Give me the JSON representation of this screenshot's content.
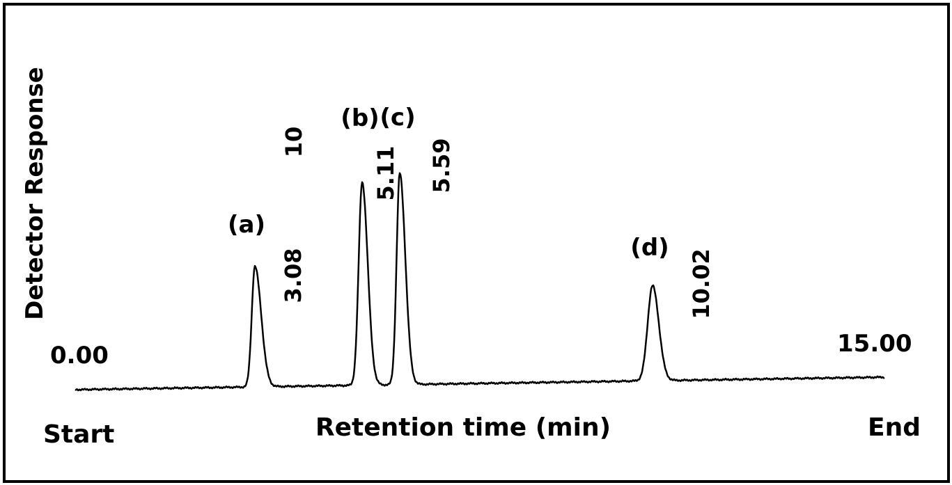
{
  "chart_data": {
    "type": "line",
    "title": "",
    "xlabel": "Retention time (min)",
    "ylabel": "Detector Response",
    "xlim": [
      0.0,
      15.0
    ],
    "grid": false,
    "legend": "none",
    "line_color": "#000000",
    "axis_marks": {
      "start_value": "0.00",
      "end_value": "15.00",
      "start_label": "Start",
      "end_label": "End"
    },
    "peaks": [
      {
        "label": "(a)",
        "retention_time": "3.08",
        "rt": 3.08,
        "height": 0.57
      },
      {
        "label": "(b)",
        "retention_time": "5.11",
        "rt": 5.11,
        "height": 0.96
      },
      {
        "label": "(c)",
        "retention_time": "5.59",
        "rt": 5.59,
        "height": 1.0
      },
      {
        "label": "(d)",
        "retention_time": "10.02",
        "rt": 10.02,
        "height": 0.45
      }
    ],
    "extra_annotation": "10"
  }
}
